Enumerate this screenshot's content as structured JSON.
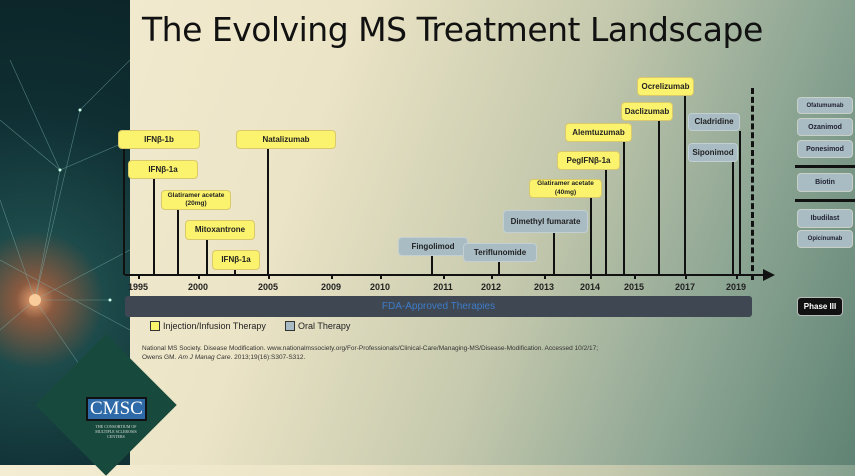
{
  "title": "The Evolving MS Treatment Landscape",
  "colors": {
    "injection": "#fbf36e",
    "oral": "#a9bcc4",
    "fda_bar": "#3f4852",
    "fda_text": "#3d7cc9"
  },
  "years": [
    "1995",
    "2000",
    "2005",
    "2009",
    "2010",
    "2011",
    "2012",
    "2013",
    "2014",
    "2015",
    "2017",
    "2019"
  ],
  "therapies": [
    {
      "name": "IFNβ-1b",
      "type": "injection"
    },
    {
      "name": "IFNβ-1a",
      "type": "injection"
    },
    {
      "name": "Glatiramer acetate (20mg)",
      "type": "injection"
    },
    {
      "name": "Mitoxantrone",
      "type": "injection"
    },
    {
      "name": "IFNβ-1a",
      "type": "injection"
    },
    {
      "name": "Natalizumab",
      "type": "injection"
    },
    {
      "name": "Fingolimod",
      "type": "oral"
    },
    {
      "name": "Teriflunomide",
      "type": "oral"
    },
    {
      "name": "Dimethyl fumarate",
      "type": "oral"
    },
    {
      "name": "Glatiramer acetate (40mg)",
      "type": "injection"
    },
    {
      "name": "PegIFNβ-1a",
      "type": "injection"
    },
    {
      "name": "Alemtuzumab",
      "type": "injection"
    },
    {
      "name": "Daclizumab",
      "type": "injection"
    },
    {
      "name": "Ocrelizumab",
      "type": "injection"
    },
    {
      "name": "Cladridine",
      "type": "oral"
    },
    {
      "name": "Siponimod",
      "type": "oral"
    }
  ],
  "fda_label": "FDA-Approved Therapies",
  "pipeline": [
    "Ofatumumab",
    "Ozanimod",
    "Ponesimod",
    "Biotin",
    "Ibudilast",
    "Opicinumab"
  ],
  "phase_label": "Phase III",
  "legend": {
    "injection": "Injection/Infusion Therapy",
    "oral": "Oral Therapy"
  },
  "references": {
    "line1": "National MS Society. Disease Modification. www.nationalmssociety.org/For-Professionals/Clinical-Care/Managing-MS/Disease-Modification. Accessed 10/2/17;",
    "line2_a": "Owens GM. ",
    "line2_journal": "Am J Manag Care",
    "line2_b": ". 2013;19(16):S307-S312."
  },
  "logo": {
    "text": "CMSC",
    "subtitle": "THE CONSORTIUM OF MULTIPLE SCLEROSIS CENTERS"
  }
}
